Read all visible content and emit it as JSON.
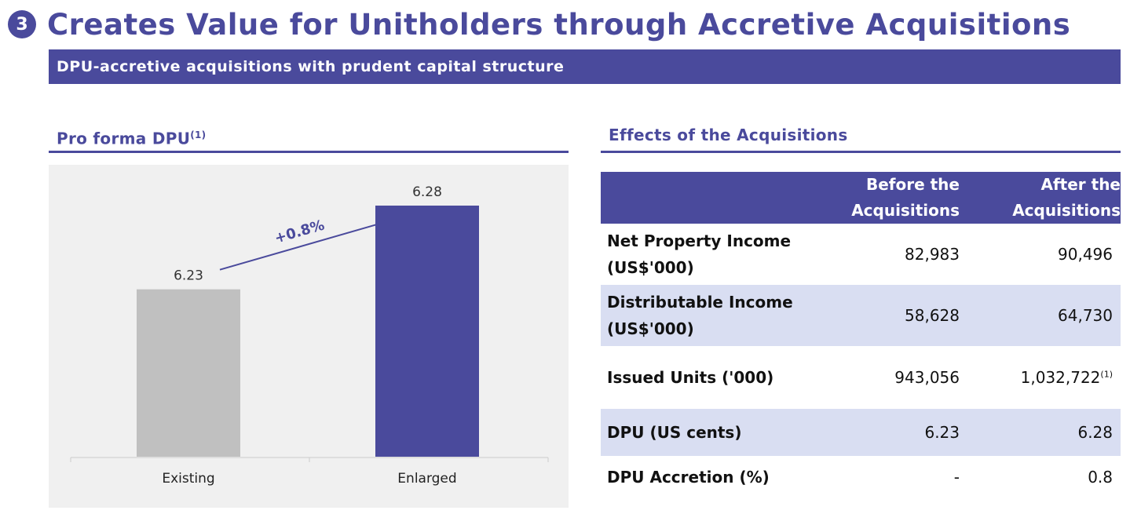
{
  "header": {
    "number": "3",
    "title": "Creates Value for Unitholders through Accretive Acquisitions",
    "subtitle": "DPU-accretive acquisitions with prudent capital structure"
  },
  "left_section": {
    "title": "Pro forma DPU",
    "note": "(1)"
  },
  "right_section": {
    "title": "Effects of the Acquisitions"
  },
  "chart_data": {
    "type": "bar",
    "categories": [
      "Existing",
      "Enlarged"
    ],
    "values": [
      6.23,
      6.28
    ],
    "value_labels": [
      "6.23",
      "6.28"
    ],
    "annotation": "+0.8%",
    "title": "",
    "xlabel": "",
    "ylabel": "",
    "colors": [
      "#c0c0c0",
      "#4a4a9c"
    ]
  },
  "table": {
    "columns": [
      "",
      "Before the Acquisitions",
      "After the Acquisitions"
    ],
    "rows": [
      {
        "label": "Net Property Income (US$'000)",
        "before": "82,983",
        "after": "90,496",
        "note": ""
      },
      {
        "label": "Distributable Income (US$'000)",
        "before": "58,628",
        "after": "64,730",
        "note": ""
      },
      {
        "label": "Issued Units ('000)",
        "before": "943,056",
        "after": "1,032,722",
        "note": "(1)"
      },
      {
        "label": "DPU (US cents)",
        "before": "6.23",
        "after": "6.28",
        "note": ""
      },
      {
        "label": "DPU Accretion (%)",
        "before": "-",
        "after": "0.8",
        "note": ""
      }
    ]
  },
  "colors": {
    "accent": "#4a4a9c",
    "row_shade": "#d9def2",
    "bar_existing": "#c0c0c0",
    "chart_bg": "#f0f0f0"
  }
}
